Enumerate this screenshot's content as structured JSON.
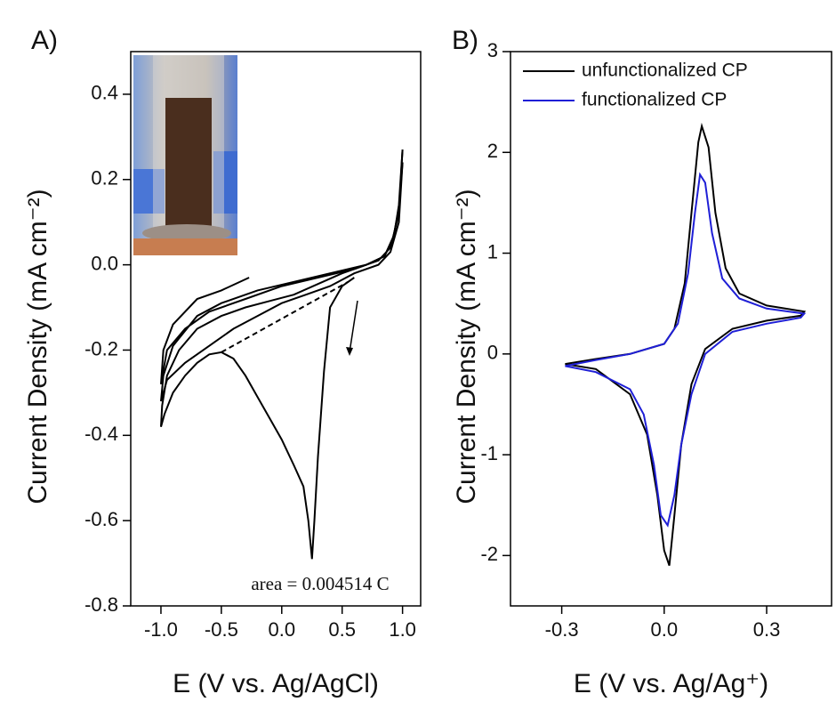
{
  "chart_data": [
    {
      "type": "line",
      "panel_label": "A)",
      "xlabel": "E (V vs. Ag/AgCl)",
      "ylabel": "Current Density (mA cm⁻²)",
      "annotation": "area = 0.004514 C",
      "xlim": [
        -1.25,
        1.15
      ],
      "ylim": [
        -0.8,
        0.5
      ],
      "xticks": [
        {
          "value": -1.0,
          "label": "-1.0"
        },
        -0.5,
        {
          "value": 0,
          "label": "0.0"
        },
        0.5,
        {
          "value": 1.0,
          "label": "1.0"
        }
      ],
      "yticks": [
        0.4,
        0.2,
        {
          "value": 0,
          "label": "0.0"
        },
        -0.2,
        -0.4,
        -0.6,
        -0.8
      ],
      "series": [
        {
          "color": "#000000",
          "x": [
            0.6,
            0.5,
            0.4,
            0.35,
            0.3,
            0.27,
            0.25,
            0.22,
            0.18,
            0.1,
            0,
            -0.1,
            -0.2,
            -0.3,
            -0.4,
            -0.5,
            -0.6,
            -0.7,
            -0.8,
            -0.9,
            -0.97,
            -1.0,
            -0.99,
            -0.95,
            -0.85,
            -0.7,
            -0.5,
            -0.3,
            -0.1,
            0.1,
            0.3,
            0.5,
            0.7,
            0.85,
            0.92,
            0.97,
            1.0
          ],
          "values": [
            -0.03,
            -0.05,
            -0.1,
            -0.25,
            -0.45,
            -0.6,
            -0.69,
            -0.6,
            -0.52,
            -0.47,
            -0.41,
            -0.36,
            -0.31,
            -0.26,
            -0.22,
            -0.205,
            -0.21,
            -0.23,
            -0.26,
            -0.3,
            -0.35,
            -0.38,
            -0.33,
            -0.26,
            -0.2,
            -0.15,
            -0.12,
            -0.1,
            -0.085,
            -0.07,
            -0.045,
            -0.02,
            0.0,
            0.02,
            0.06,
            0.13,
            0.24
          ]
        },
        {
          "color": "#000000",
          "x": [
            1.0,
            0.97,
            0.9,
            0.8,
            0.6,
            0.4,
            0.2,
            0,
            -0.2,
            -0.4,
            -0.6,
            -0.8,
            -0.95,
            -1.0,
            -0.98,
            -0.9,
            -0.7,
            -0.5,
            -0.2,
            0.1,
            0.4,
            0.7,
            0.85,
            0.93,
            0.97,
            1.0
          ],
          "values": [
            0.24,
            0.1,
            0.03,
            0.0,
            -0.02,
            -0.05,
            -0.07,
            -0.09,
            -0.12,
            -0.15,
            -0.19,
            -0.23,
            -0.27,
            -0.32,
            -0.26,
            -0.19,
            -0.12,
            -0.09,
            -0.06,
            -0.04,
            -0.02,
            0.0,
            0.02,
            0.07,
            0.14,
            0.27
          ]
        },
        {
          "color": "#000000",
          "x": [
            1.0,
            0.97,
            0.9,
            0.8,
            0.6,
            0.3,
            0,
            -0.3,
            -0.6,
            -0.8,
            -0.95,
            -1.0,
            -0.98,
            -0.9,
            -0.7,
            -0.5,
            -0.27
          ],
          "values": [
            0.27,
            0.12,
            0.04,
            0.01,
            -0.01,
            -0.03,
            -0.05,
            -0.08,
            -0.11,
            -0.15,
            -0.2,
            -0.28,
            -0.2,
            -0.14,
            -0.08,
            -0.06,
            -0.03
          ]
        },
        {
          "color": "#000000",
          "dashed": true,
          "x": [
            -0.5,
            0.55
          ],
          "values": [
            -0.205,
            -0.04
          ]
        }
      ]
    },
    {
      "type": "line",
      "panel_label": "B)",
      "xlabel": "E (V vs. Ag/Ag⁺)",
      "ylabel": "Current Density (mA cm⁻²)",
      "xlim": [
        -0.45,
        0.49
      ],
      "ylim": [
        -2.5,
        3
      ],
      "xticks": [
        -0.3,
        {
          "value": 0,
          "label": "0.0"
        },
        0.3
      ],
      "yticks": [
        3,
        2,
        1,
        0,
        -1,
        -2
      ],
      "legend": "upper left",
      "series": [
        {
          "name": "unfunctionalized CP",
          "color": "#000000",
          "x": [
            -0.29,
            -0.2,
            -0.1,
            0,
            0.03,
            0.06,
            0.08,
            0.1,
            0.11,
            0.13,
            0.15,
            0.18,
            0.22,
            0.3,
            0.41,
            0.4,
            0.3,
            0.2,
            0.12,
            0.08,
            0.05,
            0.03,
            0.015,
            0.0,
            -0.02,
            -0.05,
            -0.1,
            -0.2,
            -0.29
          ],
          "values": [
            -0.1,
            -0.05,
            0.0,
            0.1,
            0.25,
            0.7,
            1.4,
            2.1,
            2.26,
            2.05,
            1.4,
            0.85,
            0.6,
            0.48,
            0.42,
            0.38,
            0.33,
            0.25,
            0.05,
            -0.3,
            -0.9,
            -1.6,
            -2.1,
            -1.95,
            -1.4,
            -0.8,
            -0.4,
            -0.15,
            -0.1
          ]
        },
        {
          "name": "functionalized CP",
          "color": "#1f1fd6",
          "x": [
            -0.29,
            -0.2,
            -0.1,
            0,
            0.04,
            0.07,
            0.09,
            0.105,
            0.12,
            0.14,
            0.17,
            0.22,
            0.3,
            0.41,
            0.4,
            0.3,
            0.2,
            0.12,
            0.08,
            0.05,
            0.03,
            0.01,
            -0.01,
            -0.03,
            -0.06,
            -0.1,
            -0.2,
            -0.29
          ],
          "values": [
            -0.12,
            -0.06,
            0.0,
            0.1,
            0.3,
            0.8,
            1.4,
            1.78,
            1.7,
            1.2,
            0.75,
            0.55,
            0.45,
            0.4,
            0.36,
            0.3,
            0.22,
            0.0,
            -0.4,
            -0.9,
            -1.4,
            -1.7,
            -1.6,
            -1.1,
            -0.6,
            -0.35,
            -0.18,
            -0.12
          ]
        }
      ]
    }
  ]
}
